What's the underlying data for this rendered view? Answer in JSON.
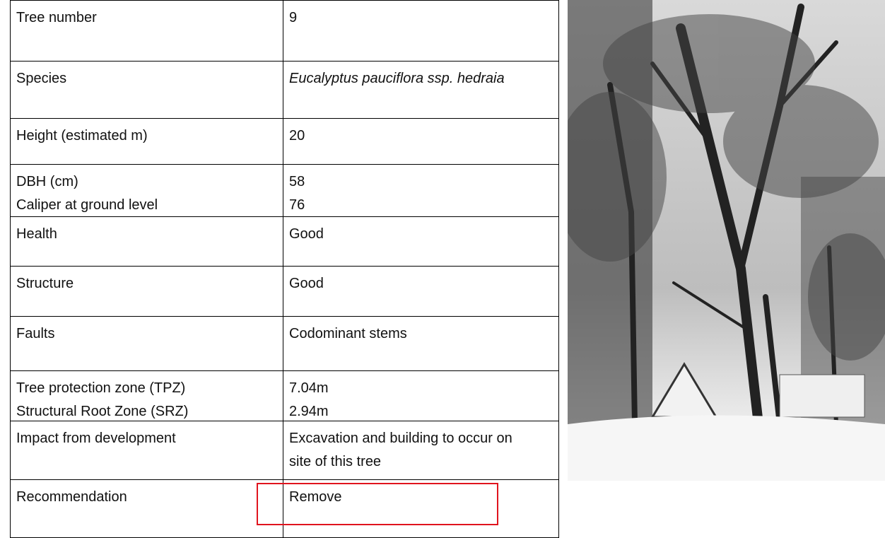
{
  "table": {
    "rows": [
      [
        [
          "Tree number"
        ],
        [
          "9"
        ]
      ],
      [
        [
          "Species"
        ],
        [
          "Eucalyptus pauciflora ssp. hedraia"
        ]
      ],
      [
        [
          "Height (estimated m)"
        ],
        [
          "20"
        ]
      ],
      [
        [
          "DBH (cm)",
          "Caliper at ground level"
        ],
        [
          "58",
          "76"
        ]
      ],
      [
        [
          "Health"
        ],
        [
          "Good"
        ]
      ],
      [
        [
          "Structure"
        ],
        [
          "Good"
        ]
      ],
      [
        [
          "Faults"
        ],
        [
          "Codominant stems"
        ]
      ],
      [
        [
          "Tree protection zone (TPZ)",
          "Structural Root Zone (SRZ)"
        ],
        [
          "7.04m",
          "2.94m"
        ]
      ],
      [
        [
          "Impact from development"
        ],
        [
          "Excavation and building to occur on site of this tree"
        ]
      ],
      [
        [
          "Recommendation"
        ],
        [
          "Remove"
        ]
      ]
    ]
  }
}
